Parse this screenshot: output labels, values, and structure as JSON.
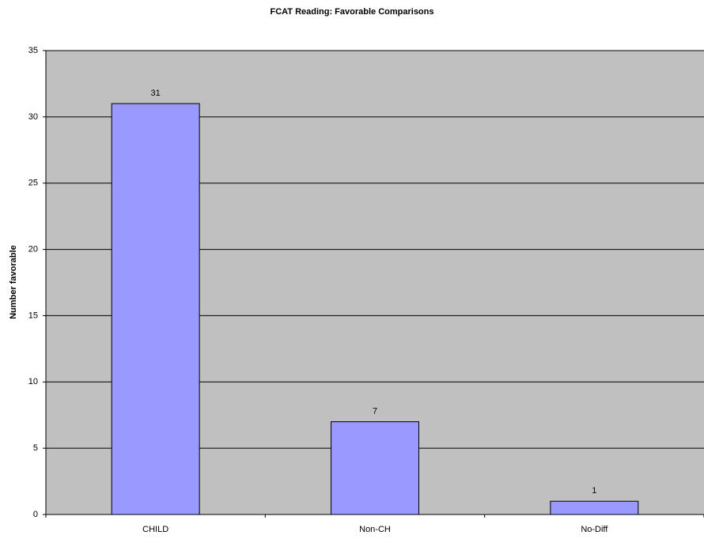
{
  "chart_data": {
    "type": "bar",
    "title": "FCAT Reading: Favorable Comparisons",
    "y_label": "Number favorable",
    "categories": [
      "CHILD",
      "Non-CH",
      "No-Diff"
    ],
    "values": [
      31,
      7,
      1
    ],
    "color": "#9999ff",
    "ylim": [
      0,
      35
    ],
    "yticks": [
      0,
      5,
      10,
      15,
      20,
      25,
      30,
      35
    ],
    "grid": true
  }
}
